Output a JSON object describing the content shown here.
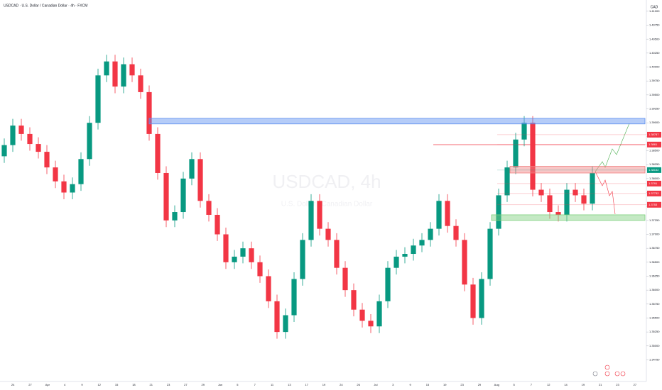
{
  "chart_data": {
    "type": "candlestick",
    "title": "USDCAD · U.S. Dollar / Canadian Dollar · 4h · FXCM",
    "watermark": "USDCAD, 4h",
    "watermark_subtitle": "U.S. Dollar / Canadian Dollar",
    "currency": "CAD",
    "up_color": "#089981",
    "down_color": "#f23645",
    "open": [
      1.384,
      1.386,
      1.3895,
      1.388,
      1.3862,
      1.3848,
      1.382,
      1.3795,
      1.3775,
      1.379,
      1.3835,
      1.39,
      1.3985,
      1.401,
      1.3965,
      1.4005,
      1.3985,
      1.3955,
      1.388,
      1.381,
      1.3725,
      1.374,
      1.38,
      1.3835,
      1.376,
      1.3735,
      1.37,
      1.365,
      1.366,
      1.3675,
      1.365,
      1.3625,
      1.358,
      1.3525,
      1.3555,
      1.362,
      1.369,
      1.376,
      1.371,
      1.369,
      1.364,
      1.36,
      1.3565,
      1.3545,
      1.3535,
      1.358,
      1.364,
      1.366,
      1.3665,
      1.368,
      1.369,
      1.371,
      1.376,
      1.3715,
      1.369,
      1.361,
      1.355,
      1.362,
      1.371,
      1.377,
      1.382,
      1.387,
      1.39,
      1.378,
      1.377,
      1.374,
      1.3735,
      1.378,
      1.377,
      1.3755
    ],
    "high": [
      1.3872,
      1.3907,
      1.3907,
      1.3892,
      1.3874,
      1.386,
      1.3832,
      1.3807,
      1.3802,
      1.3847,
      1.3912,
      1.3997,
      1.4022,
      1.4022,
      1.4017,
      1.4017,
      1.3997,
      1.3967,
      1.3892,
      1.3822,
      1.3752,
      1.3812,
      1.3847,
      1.3847,
      1.3772,
      1.3747,
      1.3712,
      1.3672,
      1.3687,
      1.3687,
      1.3662,
      1.3637,
      1.3592,
      1.3567,
      1.3632,
      1.3702,
      1.3772,
      1.3772,
      1.3722,
      1.3702,
      1.3652,
      1.3612,
      1.3577,
      1.3557,
      1.3592,
      1.3652,
      1.3672,
      1.3677,
      1.3692,
      1.3702,
      1.3722,
      1.3772,
      1.3772,
      1.3727,
      1.3702,
      1.3622,
      1.3632,
      1.3722,
      1.3782,
      1.3832,
      1.3882,
      1.3912,
      1.3912,
      1.3792,
      1.3782,
      1.3752,
      1.3792,
      1.3792,
      1.3782,
      1.3822
    ],
    "low": [
      1.3828,
      1.3848,
      1.3868,
      1.385,
      1.3836,
      1.3808,
      1.3783,
      1.3763,
      1.3763,
      1.3778,
      1.3823,
      1.3888,
      1.3973,
      1.3953,
      1.3953,
      1.3973,
      1.3943,
      1.3868,
      1.3798,
      1.3713,
      1.3713,
      1.3728,
      1.3788,
      1.3748,
      1.3723,
      1.3688,
      1.3638,
      1.3638,
      1.3648,
      1.3638,
      1.3613,
      1.3568,
      1.3513,
      1.3513,
      1.3543,
      1.3608,
      1.3678,
      1.3698,
      1.3678,
      1.3628,
      1.3588,
      1.3553,
      1.3533,
      1.3523,
      1.3523,
      1.3568,
      1.3628,
      1.3648,
      1.3653,
      1.3668,
      1.3678,
      1.3698,
      1.3703,
      1.3678,
      1.3598,
      1.3538,
      1.3538,
      1.3608,
      1.3698,
      1.3758,
      1.3808,
      1.3858,
      1.3768,
      1.3758,
      1.3728,
      1.3723,
      1.3723,
      1.3758,
      1.3743,
      1.3743
    ],
    "close": [
      1.386,
      1.3895,
      1.388,
      1.3862,
      1.3848,
      1.382,
      1.3795,
      1.3775,
      1.379,
      1.3835,
      1.39,
      1.3985,
      1.401,
      1.3965,
      1.4005,
      1.3985,
      1.3955,
      1.388,
      1.381,
      1.3725,
      1.374,
      1.38,
      1.3835,
      1.376,
      1.3735,
      1.37,
      1.365,
      1.366,
      1.3675,
      1.365,
      1.3625,
      1.358,
      1.3525,
      1.3555,
      1.362,
      1.369,
      1.376,
      1.371,
      1.369,
      1.364,
      1.36,
      1.3565,
      1.3545,
      1.3535,
      1.358,
      1.364,
      1.366,
      1.3665,
      1.368,
      1.369,
      1.371,
      1.376,
      1.3715,
      1.369,
      1.361,
      1.355,
      1.362,
      1.371,
      1.377,
      1.382,
      1.387,
      1.39,
      1.378,
      1.377,
      1.374,
      1.3735,
      1.378,
      1.377,
      1.3755,
      1.381
    ],
    "time_labels": [
      "24",
      "27",
      "Apr",
      "4",
      "9",
      "12",
      "15",
      "18",
      "21",
      "23",
      "27",
      "29",
      "Jun",
      "5",
      "7",
      "11",
      "13",
      "17",
      "19",
      "24",
      "26",
      "Jul",
      "3",
      "9",
      "15",
      "19",
      "23",
      "29",
      "Aug",
      "5",
      "7",
      "12",
      "14",
      "19",
      "21",
      "23",
      "27"
    ],
    "ylim": [
      1.344,
      1.411
    ],
    "yticks": [
      {
        "value": 1.3475,
        "label": "1.34750"
      },
      {
        "value": 1.35,
        "label": "1.35000"
      },
      {
        "value": 1.3525,
        "label": "1.35250"
      },
      {
        "value": 1.355,
        "label": "1.35500"
      },
      {
        "value": 1.3575,
        "label": "1.35750"
      },
      {
        "value": 1.36,
        "label": "1.36000"
      },
      {
        "value": 1.3625,
        "label": "1.36250"
      },
      {
        "value": 1.365,
        "label": "1.36500"
      },
      {
        "value": 1.3675,
        "label": "1.36750"
      },
      {
        "value": 1.37,
        "label": "1.37000"
      },
      {
        "value": 1.3725,
        "label": "1.37250"
      },
      {
        "value": 1.375,
        "label": "1.37500"
      },
      {
        "value": 1.3775,
        "label": "1.37750"
      },
      {
        "value": 1.38,
        "label": "1.38000"
      },
      {
        "value": 1.3825,
        "label": "1.38250"
      },
      {
        "value": 1.385,
        "label": "1.38500"
      },
      {
        "value": 1.3875,
        "label": "1.38750"
      },
      {
        "value": 1.39,
        "label": "1.39000"
      },
      {
        "value": 1.3925,
        "label": "1.39250"
      },
      {
        "value": 1.395,
        "label": "1.39500"
      },
      {
        "value": 1.3975,
        "label": "1.39750"
      },
      {
        "value": 1.4,
        "label": "1.40000"
      },
      {
        "value": 1.4025,
        "label": "1.40250"
      },
      {
        "value": 1.405,
        "label": "1.40500"
      },
      {
        "value": 1.4075,
        "label": "1.40750"
      },
      {
        "value": 1.41,
        "label": "1.41000"
      }
    ],
    "zones": [
      {
        "low": 1.3898,
        "high": 1.3908,
        "color": "#5b8def"
      },
      {
        "low": 1.381,
        "high": 1.3822,
        "color": "#f08080"
      },
      {
        "low": 1.3725,
        "high": 1.3735,
        "color": "#7ccf7c"
      }
    ],
    "price_tags": [
      {
        "value": 1.38787,
        "color": "#f23645"
      },
      {
        "value": 1.3861,
        "color": "#f23645"
      },
      {
        "value": 1.38152,
        "color": "#089981"
      },
      {
        "value": 1.3791,
        "color": "#f23645"
      },
      {
        "value": 1.37732,
        "color": "#f23645"
      },
      {
        "value": 1.3753,
        "color": "#f23645"
      }
    ]
  }
}
